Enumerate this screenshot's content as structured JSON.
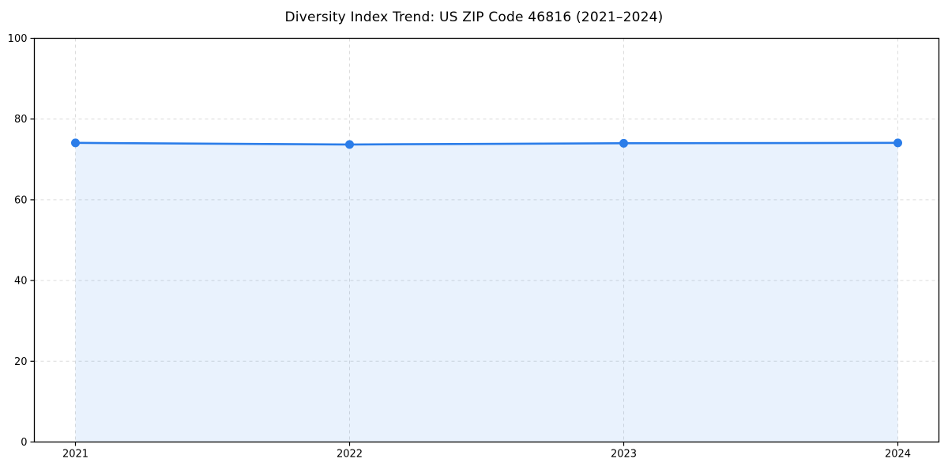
{
  "chart_data": {
    "type": "line",
    "title": "Diversity Index Trend: US ZIP Code 46816 (2021–2024)",
    "categories": [
      "2021",
      "2022",
      "2023",
      "2024"
    ],
    "series": [
      {
        "name": "Diversity Index",
        "values": [
          74.1,
          73.7,
          74.0,
          74.1
        ]
      }
    ],
    "xlabel": "",
    "ylabel": "",
    "ylim": [
      0,
      100
    ],
    "y_ticks": [
      0,
      20,
      40,
      60,
      80,
      100
    ],
    "grid": true,
    "grid_style": "dashed",
    "legend_position": "none",
    "colors": {
      "line": "#2b7de9",
      "marker": "#2b7de9",
      "area_fill": "#2b7de9",
      "area_opacity": 0.1,
      "grid": "#dcdcdc",
      "axis": "#000000",
      "background": "#ffffff",
      "title_text": "#000000",
      "tick_text": "#000000"
    }
  }
}
